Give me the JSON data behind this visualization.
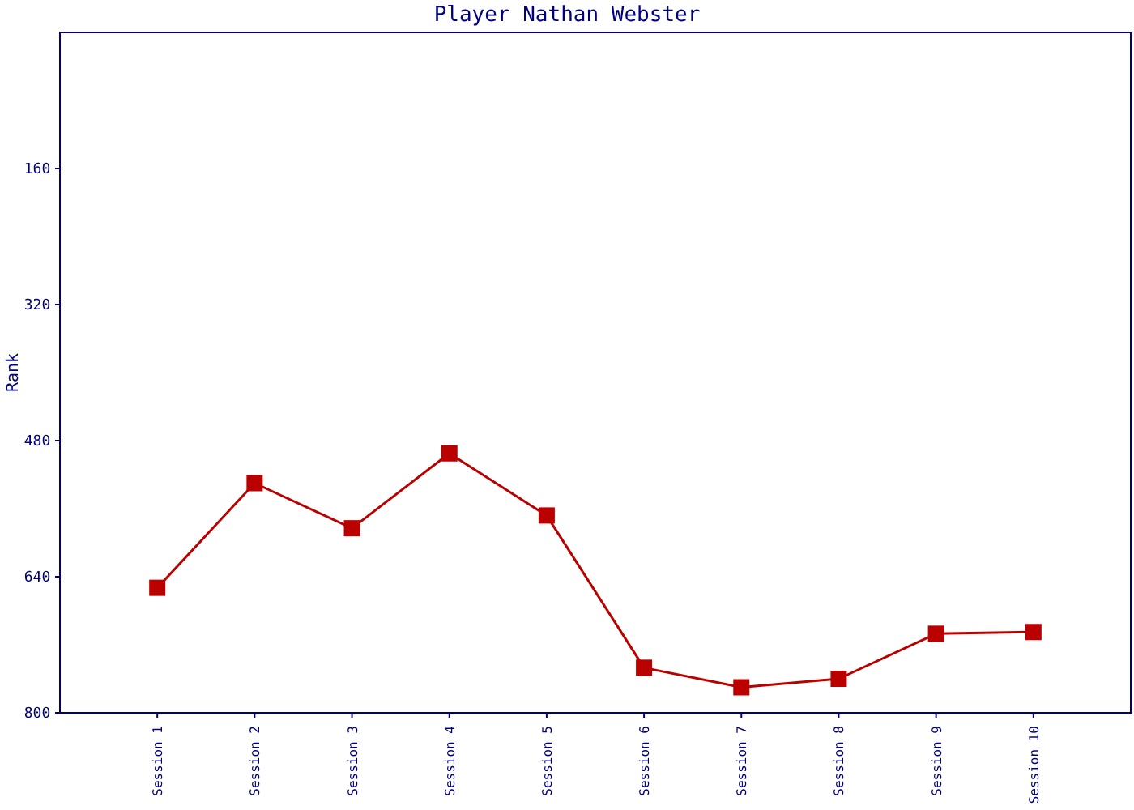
{
  "chart_data": {
    "type": "line",
    "title": "Player Nathan Webster",
    "ylabel": "Rank",
    "categories": [
      "Session 1",
      "Session 2",
      "Session 3",
      "Session 4",
      "Session 5",
      "Session 6",
      "Session 7",
      "Session 8",
      "Session 9",
      "Session 10"
    ],
    "series": [
      {
        "color": "#bb0000",
        "values": [
          653,
          530,
          583,
          495,
          568,
          747,
          770,
          760,
          707,
          705
        ]
      }
    ],
    "ylim": [
      800,
      0
    ],
    "yticks": [
      160,
      320,
      480,
      640,
      800
    ],
    "marker": "square",
    "line_style": "solid"
  }
}
